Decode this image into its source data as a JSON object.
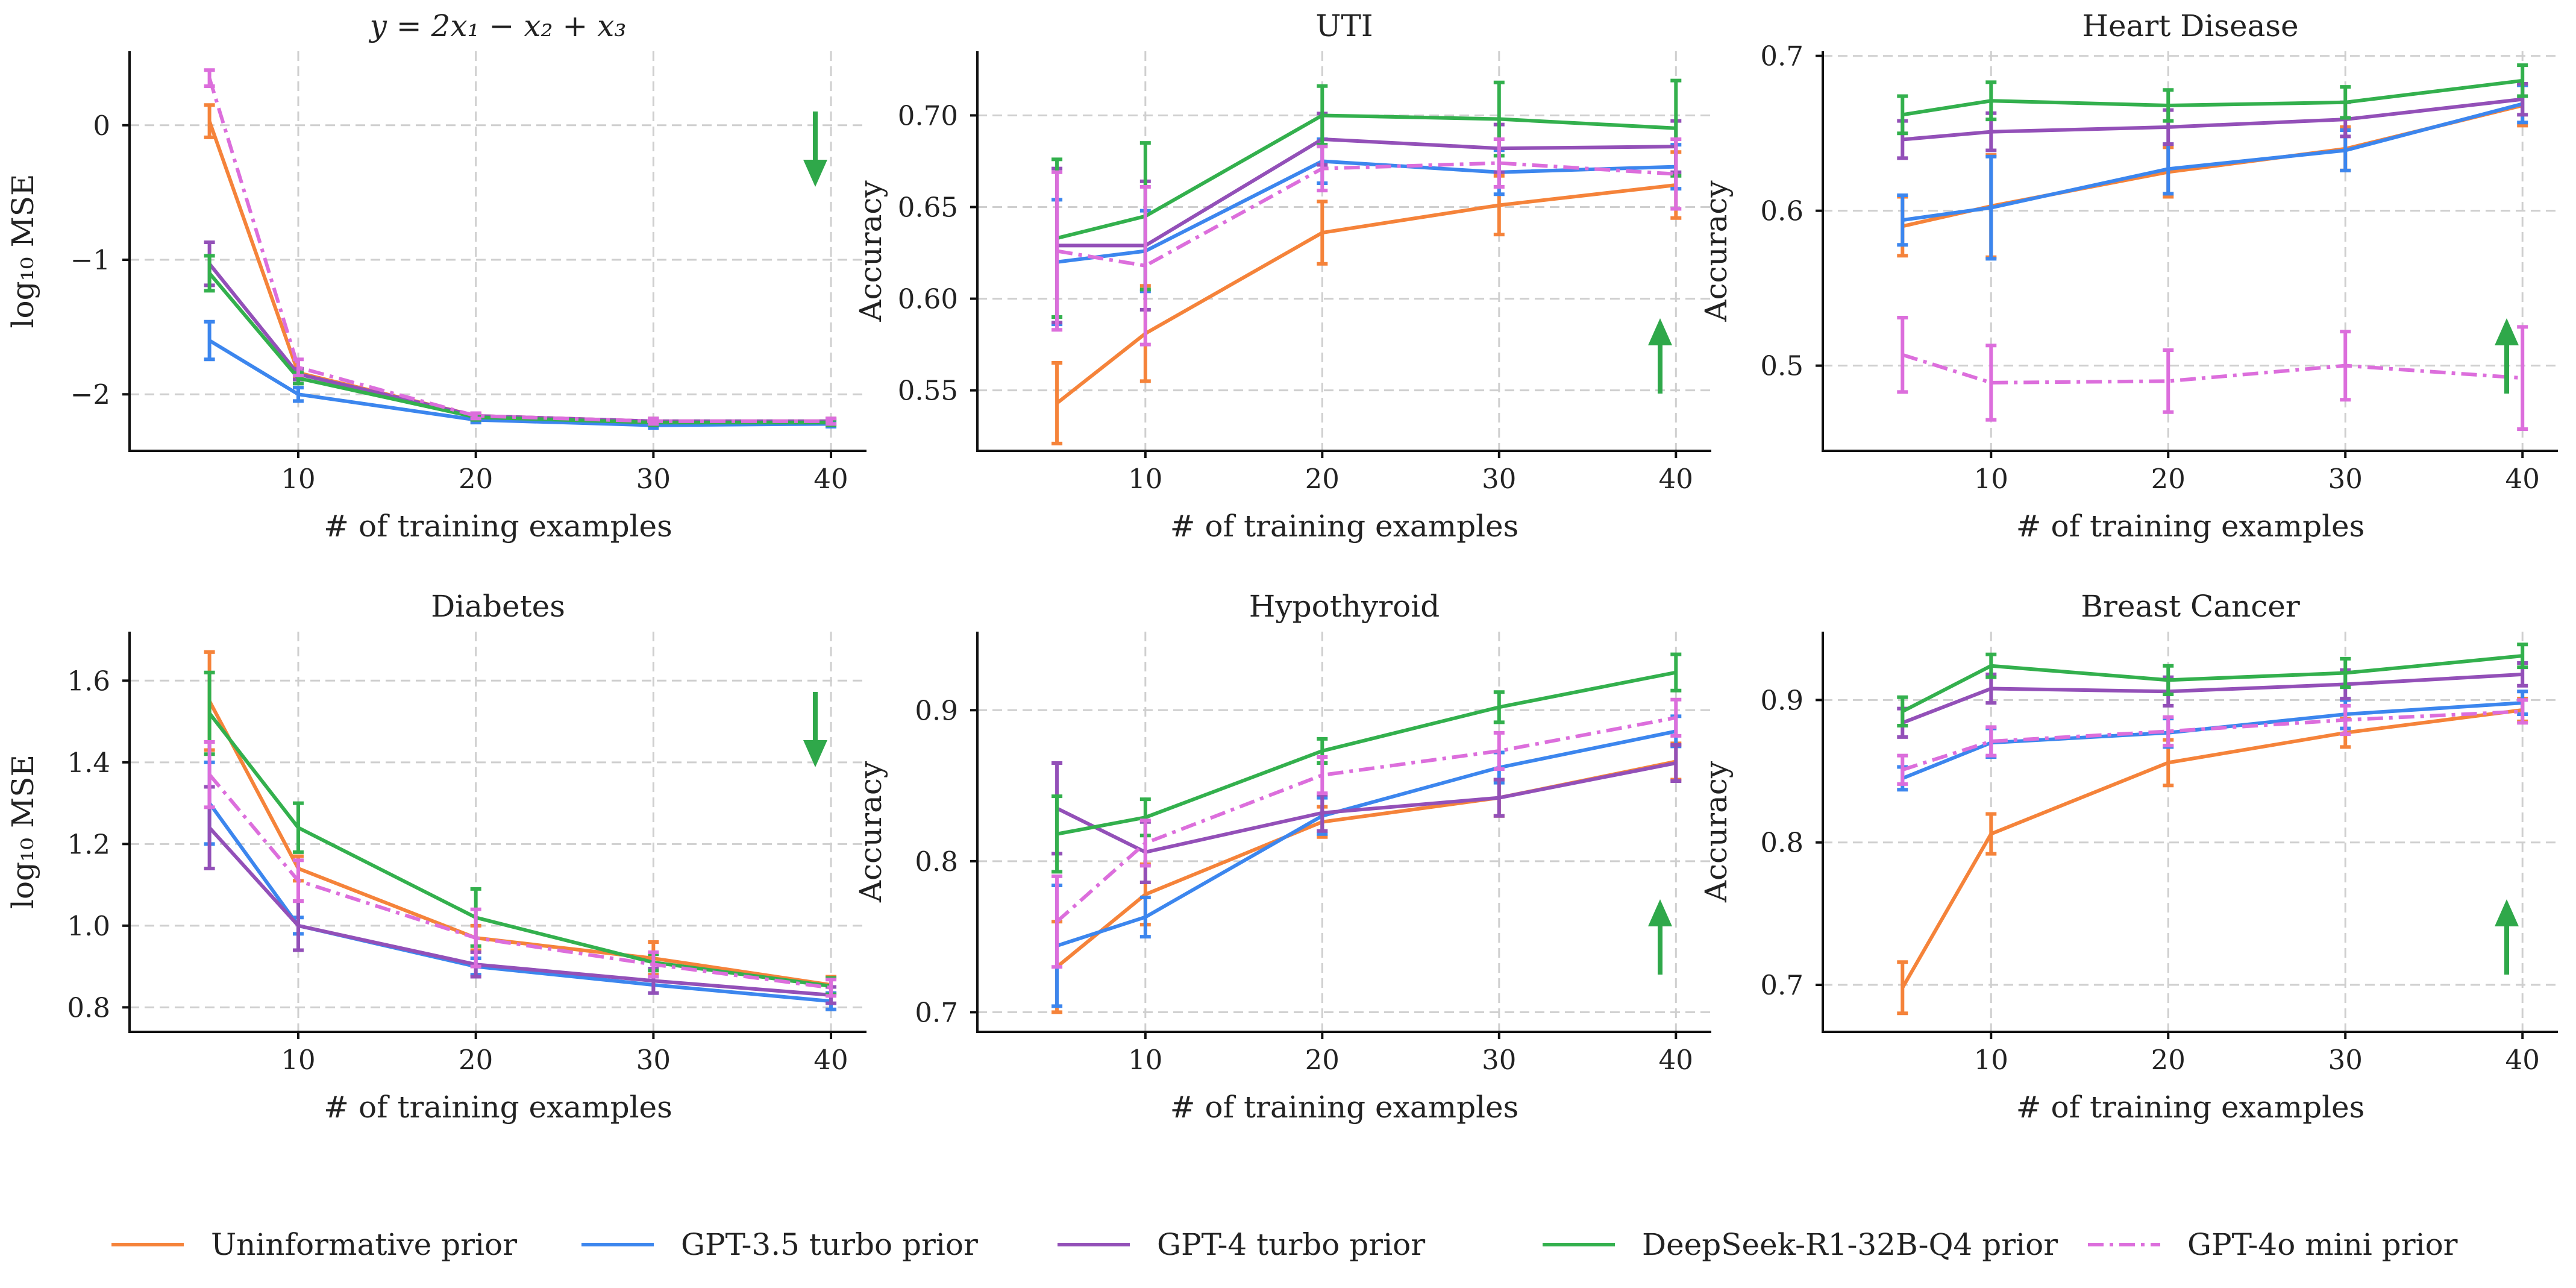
{
  "legend": [
    {
      "key": "uninformative",
      "label": "Uninformative prior"
    },
    {
      "key": "gpt35",
      "label": "GPT-3.5 turbo prior"
    },
    {
      "key": "gpt4",
      "label": "GPT-4 turbo prior"
    },
    {
      "key": "deepseek",
      "label": "DeepSeek-R1-32B-Q4 prior"
    },
    {
      "key": "gpt4o_mini",
      "label": "GPT-4o mini prior"
    }
  ],
  "colors": {
    "uninformative": "#f5833a",
    "gpt35": "#3c86ee",
    "gpt4": "#9350b8",
    "deepseek": "#33b04d",
    "gpt4o_mini": "#dc6edc",
    "arrow": "#2fa84a"
  },
  "chart_data": [
    {
      "type": "line",
      "title": "y = 2x₁ − x₂ + x₃",
      "xlabel": "# of training examples",
      "ylabel": "log₁₀ MSE",
      "x": [
        5,
        10,
        20,
        30,
        40
      ],
      "xlim": [
        0.5,
        42
      ],
      "ylim": [
        -2.42,
        0.55
      ],
      "yticks": [
        0,
        -1,
        -2
      ],
      "ytick_labels": [
        "0",
        "−1",
        "−2"
      ],
      "xticks": [
        10,
        20,
        30,
        40
      ],
      "arrow": "down",
      "series": [
        {
          "key": "uninformative",
          "values": [
            0.03,
            -1.84,
            -2.16,
            -2.2,
            -2.2
          ],
          "errors": [
            0.12,
            0.03,
            0.02,
            0.02,
            0.02
          ]
        },
        {
          "key": "gpt35",
          "values": [
            -1.6,
            -2.0,
            -2.19,
            -2.23,
            -2.22
          ],
          "errors": [
            0.14,
            0.05,
            0.02,
            0.02,
            0.02
          ]
        },
        {
          "key": "gpt4",
          "values": [
            -1.03,
            -1.85,
            -2.16,
            -2.2,
            -2.2
          ],
          "errors": [
            0.16,
            0.04,
            0.02,
            0.02,
            0.02
          ]
        },
        {
          "key": "deepseek",
          "values": [
            -1.1,
            -1.88,
            -2.17,
            -2.21,
            -2.21
          ],
          "errors": [
            0.13,
            0.04,
            0.02,
            0.02,
            0.02
          ]
        },
        {
          "key": "gpt4o_mini",
          "values": [
            0.35,
            -1.8,
            -2.16,
            -2.2,
            -2.2
          ],
          "errors": [
            0.06,
            0.06,
            0.02,
            0.02,
            0.02
          ]
        }
      ]
    },
    {
      "type": "line",
      "title": "UTI",
      "xlabel": "# of training examples",
      "ylabel": "Accuracy",
      "x": [
        5,
        10,
        20,
        30,
        40
      ],
      "xlim": [
        0.5,
        42
      ],
      "ylim": [
        0.517,
        0.735
      ],
      "yticks": [
        0.55,
        0.6,
        0.65,
        0.7
      ],
      "ytick_labels": [
        "0.55",
        "0.60",
        "0.65",
        "0.70"
      ],
      "xticks": [
        10,
        20,
        30,
        40
      ],
      "arrow": "up",
      "series": [
        {
          "key": "uninformative",
          "values": [
            0.543,
            0.581,
            0.636,
            0.651,
            0.662
          ],
          "errors": [
            0.022,
            0.026,
            0.017,
            0.016,
            0.018
          ]
        },
        {
          "key": "gpt35",
          "values": [
            0.62,
            0.626,
            0.675,
            0.669,
            0.672
          ],
          "errors": [
            0.034,
            0.022,
            0.012,
            0.012,
            0.012
          ]
        },
        {
          "key": "gpt4",
          "values": [
            0.629,
            0.629,
            0.687,
            0.682,
            0.683
          ],
          "errors": [
            0.042,
            0.035,
            0.014,
            0.013,
            0.014
          ]
        },
        {
          "key": "deepseek",
          "values": [
            0.633,
            0.645,
            0.7,
            0.698,
            0.693
          ],
          "errors": [
            0.043,
            0.04,
            0.016,
            0.02,
            0.026
          ]
        },
        {
          "key": "gpt4o_mini",
          "values": [
            0.626,
            0.618,
            0.671,
            0.674,
            0.668
          ],
          "errors": [
            0.043,
            0.043,
            0.012,
            0.013,
            0.019
          ]
        }
      ]
    },
    {
      "type": "line",
      "title": "Heart Disease",
      "xlabel": "# of training examples",
      "ylabel": "Accuracy",
      "x": [
        5,
        10,
        20,
        30,
        40
      ],
      "xlim": [
        0.5,
        42
      ],
      "ylim": [
        0.445,
        0.703
      ],
      "yticks": [
        0.5,
        0.6,
        0.7
      ],
      "ytick_labels": [
        "0.5",
        "0.6",
        "0.7"
      ],
      "xticks": [
        10,
        20,
        30,
        40
      ],
      "arrow": "up",
      "series": [
        {
          "key": "uninformative",
          "values": [
            0.59,
            0.603,
            0.625,
            0.64,
            0.668
          ],
          "errors": [
            0.019,
            0.033,
            0.016,
            0.014,
            0.013
          ]
        },
        {
          "key": "gpt35",
          "values": [
            0.594,
            0.602,
            0.627,
            0.639,
            0.669
          ],
          "errors": [
            0.016,
            0.033,
            0.016,
            0.013,
            0.012
          ]
        },
        {
          "key": "gpt4",
          "values": [
            0.646,
            0.651,
            0.654,
            0.659,
            0.672
          ],
          "errors": [
            0.012,
            0.012,
            0.011,
            0.011,
            0.01
          ]
        },
        {
          "key": "deepseek",
          "values": [
            0.662,
            0.671,
            0.668,
            0.67,
            0.684
          ],
          "errors": [
            0.012,
            0.012,
            0.01,
            0.01,
            0.01
          ]
        },
        {
          "key": "gpt4o_mini",
          "values": [
            0.507,
            0.489,
            0.49,
            0.5,
            0.492
          ],
          "errors": [
            0.024,
            0.024,
            0.02,
            0.022,
            0.033
          ]
        }
      ]
    },
    {
      "type": "line",
      "title": "Diabetes",
      "xlabel": "# of training examples",
      "ylabel": "log₁₀ MSE",
      "x": [
        5,
        10,
        20,
        30,
        40
      ],
      "xlim": [
        0.5,
        42
      ],
      "ylim": [
        0.74,
        1.72
      ],
      "yticks": [
        0.8,
        1.0,
        1.2,
        1.4,
        1.6
      ],
      "ytick_labels": [
        "0.8",
        "1.0",
        "1.2",
        "1.4",
        "1.6"
      ],
      "xticks": [
        10,
        20,
        30,
        40
      ],
      "arrow": "down",
      "series": [
        {
          "key": "uninformative",
          "values": [
            1.55,
            1.14,
            0.97,
            0.92,
            0.855
          ],
          "errors": [
            0.12,
            0.03,
            0.03,
            0.04,
            0.02
          ]
        },
        {
          "key": "gpt35",
          "values": [
            1.3,
            1.0,
            0.9,
            0.855,
            0.815
          ],
          "errors": [
            0.1,
            0.02,
            0.02,
            0.02,
            0.02
          ]
        },
        {
          "key": "gpt4",
          "values": [
            1.24,
            1.0,
            0.905,
            0.865,
            0.83
          ],
          "errors": [
            0.1,
            0.06,
            0.03,
            0.03,
            0.02
          ]
        },
        {
          "key": "deepseek",
          "values": [
            1.52,
            1.24,
            1.02,
            0.91,
            0.852
          ],
          "errors": [
            0.1,
            0.06,
            0.07,
            0.02,
            0.02
          ]
        },
        {
          "key": "gpt4o_mini",
          "values": [
            1.37,
            1.11,
            0.97,
            0.905,
            0.848
          ],
          "errors": [
            0.08,
            0.05,
            0.07,
            0.03,
            0.02
          ]
        }
      ]
    },
    {
      "type": "line",
      "title": "Hypothyroid",
      "xlabel": "# of training examples",
      "ylabel": "Accuracy",
      "x": [
        5,
        10,
        20,
        30,
        40
      ],
      "xlim": [
        0.5,
        42
      ],
      "ylim": [
        0.687,
        0.952
      ],
      "yticks": [
        0.7,
        0.8,
        0.9
      ],
      "ytick_labels": [
        "0.7",
        "0.8",
        "0.9"
      ],
      "xticks": [
        10,
        20,
        30,
        40
      ],
      "arrow": "up",
      "series": [
        {
          "key": "uninformative",
          "values": [
            0.73,
            0.778,
            0.826,
            0.842,
            0.866
          ],
          "errors": [
            0.03,
            0.02,
            0.01,
            0.012,
            0.012
          ]
        },
        {
          "key": "gpt35",
          "values": [
            0.744,
            0.763,
            0.83,
            0.862,
            0.886
          ],
          "errors": [
            0.04,
            0.013,
            0.012,
            0.01,
            0.01
          ]
        },
        {
          "key": "gpt4",
          "values": [
            0.835,
            0.806,
            0.832,
            0.842,
            0.865
          ],
          "errors": [
            0.03,
            0.02,
            0.012,
            0.012,
            0.012
          ]
        },
        {
          "key": "deepseek",
          "values": [
            0.818,
            0.829,
            0.873,
            0.902,
            0.925
          ],
          "errors": [
            0.025,
            0.012,
            0.008,
            0.01,
            0.012
          ]
        },
        {
          "key": "gpt4o_mini",
          "values": [
            0.76,
            0.812,
            0.857,
            0.873,
            0.895
          ],
          "errors": [
            0.03,
            0.015,
            0.012,
            0.012,
            0.012
          ]
        }
      ]
    },
    {
      "type": "line",
      "title": "Breast Cancer",
      "xlabel": "# of training examples",
      "ylabel": "Accuracy",
      "x": [
        5,
        10,
        20,
        30,
        40
      ],
      "xlim": [
        0.5,
        42
      ],
      "ylim": [
        0.667,
        0.948
      ],
      "yticks": [
        0.7,
        0.8,
        0.9
      ],
      "ytick_labels": [
        "0.7",
        "0.8",
        "0.9"
      ],
      "xticks": [
        10,
        20,
        30,
        40
      ],
      "arrow": "up",
      "series": [
        {
          "key": "uninformative",
          "values": [
            0.698,
            0.806,
            0.856,
            0.877,
            0.893
          ],
          "errors": [
            0.018,
            0.014,
            0.016,
            0.01,
            0.008
          ]
        },
        {
          "key": "gpt35",
          "values": [
            0.845,
            0.87,
            0.877,
            0.89,
            0.898
          ],
          "errors": [
            0.008,
            0.01,
            0.01,
            0.01,
            0.008
          ]
        },
        {
          "key": "gpt4",
          "values": [
            0.884,
            0.908,
            0.906,
            0.911,
            0.918
          ],
          "errors": [
            0.01,
            0.01,
            0.01,
            0.01,
            0.008
          ]
        },
        {
          "key": "deepseek",
          "values": [
            0.892,
            0.924,
            0.914,
            0.919,
            0.931
          ],
          "errors": [
            0.01,
            0.008,
            0.01,
            0.01,
            0.008
          ]
        },
        {
          "key": "gpt4o_mini",
          "values": [
            0.851,
            0.871,
            0.878,
            0.886,
            0.892
          ],
          "errors": [
            0.01,
            0.01,
            0.01,
            0.01,
            0.008
          ]
        }
      ]
    }
  ]
}
